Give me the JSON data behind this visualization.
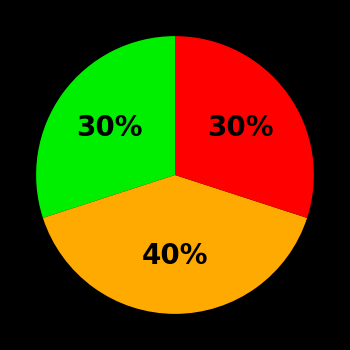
{
  "slices": [
    {
      "label": "30%",
      "value": 30,
      "color": "#00ee00"
    },
    {
      "label": "40%",
      "value": 40,
      "color": "#ffaa00"
    },
    {
      "label": "30%",
      "value": 30,
      "color": "#ff0000"
    }
  ],
  "background_color": "#000000",
  "text_color": "#000000",
  "fontsize": 20,
  "startangle": 90,
  "figsize": [
    3.5,
    3.5
  ],
  "dpi": 100,
  "label_r": 0.58
}
